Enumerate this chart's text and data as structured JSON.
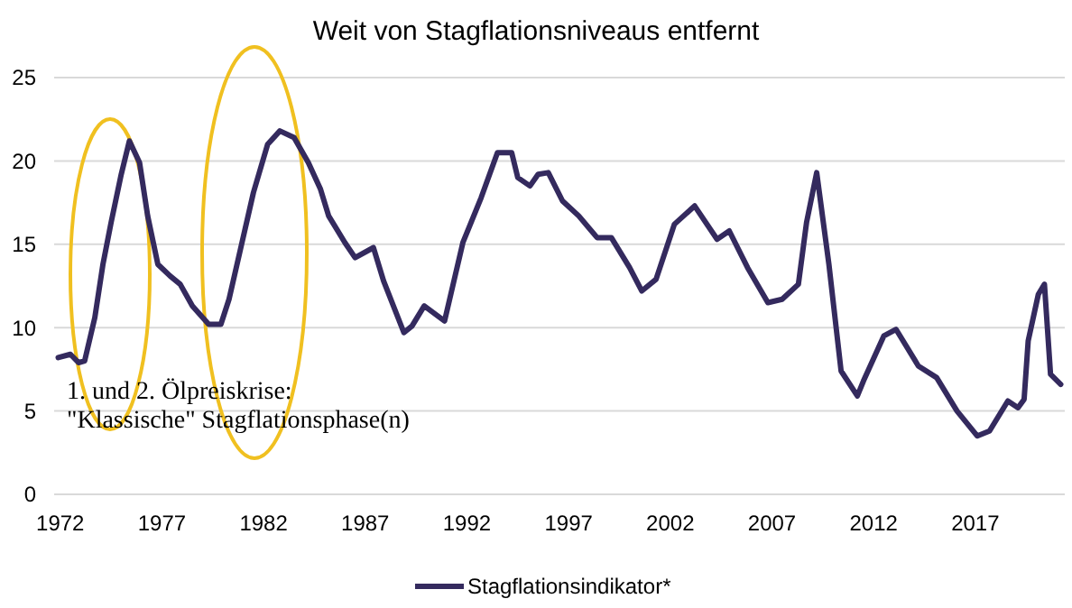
{
  "chart_data": {
    "type": "line",
    "title": "Weit von Stagflationsniveaus entfernt",
    "xlim": [
      1971.7,
      2021.4
    ],
    "xticks": [
      1972,
      1977,
      1982,
      1987,
      1992,
      1997,
      2002,
      2007,
      2012,
      2017
    ],
    "ylim": [
      0,
      25
    ],
    "yticks": [
      0,
      5,
      10,
      15,
      20,
      25
    ],
    "grid": "y",
    "legend": "bottom",
    "line_style": "solid",
    "marker": "none",
    "annotations": [
      "1. und 2. Ölpreiskrise:\n\"Klassische\" Stagflationsphase(n)"
    ],
    "series": [
      {
        "name": "Stagflationsindikator*",
        "color": "#342a5e",
        "x": [
          1971.9,
          1972.5,
          1972.9,
          1973.2,
          1973.7,
          1974.1,
          1974.5,
          1975.0,
          1975.4,
          1975.9,
          1976.3,
          1976.8,
          1977.4,
          1977.9,
          1978.5,
          1979.3,
          1979.9,
          1980.3,
          1980.9,
          1981.5,
          1982.2,
          1982.8,
          1983.5,
          1984.2,
          1984.8,
          1985.2,
          1986.0,
          1986.5,
          1987.4,
          1987.9,
          1988.9,
          1989.3,
          1989.9,
          1990.9,
          1991.8,
          1992.7,
          1993.5,
          1994.2,
          1994.5,
          1995.1,
          1995.5,
          1996.0,
          1996.7,
          1997.5,
          1998.4,
          1999.1,
          2000.0,
          2000.6,
          2001.3,
          2002.2,
          2003.2,
          2004.3,
          2004.9,
          2005.8,
          2006.8,
          2007.5,
          2008.3,
          2008.7,
          2009.2,
          2009.8,
          2010.4,
          2011.2,
          2011.5,
          2012.5,
          2013.1,
          2014.2,
          2015.1,
          2016.1,
          2017.1,
          2017.7,
          2018.2,
          2018.6,
          2019.1,
          2019.4,
          2019.6,
          2020.1,
          2020.4,
          2020.7,
          2021.2
        ],
        "values": [
          8.2,
          8.4,
          7.9,
          8.0,
          10.6,
          13.8,
          16.3,
          19.2,
          21.2,
          19.9,
          16.7,
          13.8,
          13.1,
          12.6,
          11.3,
          10.2,
          10.2,
          11.7,
          14.9,
          18.1,
          21.0,
          21.8,
          21.4,
          19.9,
          18.3,
          16.7,
          15.1,
          14.2,
          14.8,
          12.8,
          9.7,
          10.1,
          11.3,
          10.4,
          15.1,
          17.8,
          20.5,
          20.5,
          19.0,
          18.5,
          19.2,
          19.3,
          17.6,
          16.7,
          15.4,
          15.4,
          13.6,
          12.2,
          12.9,
          16.2,
          17.3,
          15.3,
          15.8,
          13.6,
          11.5,
          11.7,
          12.6,
          16.3,
          19.3,
          13.8,
          7.4,
          5.9,
          6.8,
          9.5,
          9.9,
          7.7,
          7.0,
          5.0,
          3.5,
          3.8,
          4.8,
          5.6,
          5.2,
          5.7,
          9.2,
          12.0,
          12.6,
          7.2,
          6.6
        ]
      }
    ]
  }
}
